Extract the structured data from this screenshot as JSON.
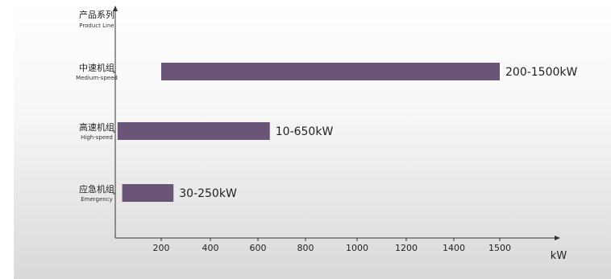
{
  "chart_data": {
    "type": "bar",
    "orientation": "horizontal",
    "y_axis_title": {
      "zh": "产品系列",
      "en": "Product Line"
    },
    "x_unit": "kW",
    "categories": [
      {
        "zh": "中速机组",
        "en": "Medium-speed"
      },
      {
        "zh": "高速机组",
        "en": "High-speed"
      },
      {
        "zh": "应急机组",
        "en": "Emergency"
      }
    ],
    "ranges": [
      {
        "start": 200,
        "end": 1500,
        "label": "200-1500kW"
      },
      {
        "start": 10,
        "end": 650,
        "label": "10-650kW"
      },
      {
        "start": 30,
        "end": 250,
        "label": "30-250kW"
      }
    ],
    "x_ticks": [
      "200",
      "400",
      "600",
      "800",
      "1000",
      "1200",
      "1400",
      "1500"
    ],
    "colors": {
      "bar": "#6a5577",
      "axis": "#333333"
    }
  }
}
